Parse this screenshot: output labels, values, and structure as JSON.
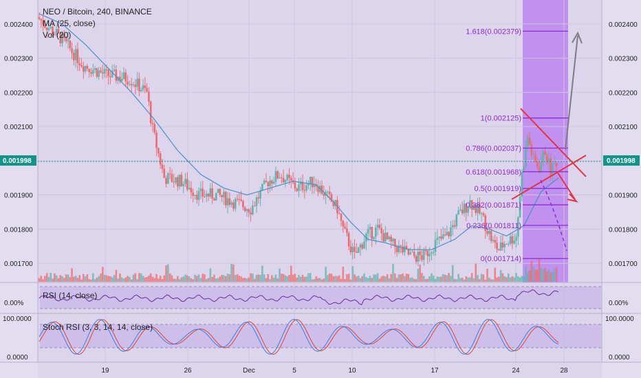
{
  "header": {
    "title": "NEO / Bitcoin, 240, BINANCE",
    "ma_label": "MA (25, close)",
    "vol_label": "Vol (20)"
  },
  "price_axis": {
    "labels": [
      "0.002400",
      "0.002300",
      "0.002200",
      "0.002100",
      "0.001900",
      "0.001800",
      "0.001700"
    ],
    "current_price": "0.001998"
  },
  "rsi": {
    "label": "RSI (14, close)",
    "axis_label": "0.00%"
  },
  "stoch": {
    "label": "Stoch RSI (3, 3, 14, 14, close)",
    "axis_top": "100.0000",
    "axis_bottom": "0.0000"
  },
  "x_axis": {
    "labels": [
      "19",
      "26",
      "Dec",
      "5",
      "10",
      "17",
      "24",
      "28"
    ]
  },
  "fib_levels": [
    {
      "label": "1.618(0.002379)",
      "value": 0.002379
    },
    {
      "label": "1(0.002125)",
      "value": 0.002125
    },
    {
      "label": "0.786(0.002037)",
      "value": 0.002037
    },
    {
      "label": "0.618(0.001968)",
      "value": 0.001968
    },
    {
      "label": "0.5(0.001919)",
      "value": 0.001919
    },
    {
      "label": "0.382(0.001871)",
      "value": 0.001871
    },
    {
      "label": "0.236(0.001811)",
      "value": 0.001811
    },
    {
      "label": "0(0.001714)",
      "value": 0.001714
    }
  ],
  "colors": {
    "up": "#5fb4ad",
    "down": "#ef6a6e",
    "ma": "#4d8fc1",
    "fib": "#8e2bd6",
    "fib_band": "#b57aef",
    "triangle": "#e53345",
    "arrow_up": "#7c7c84",
    "rsi_line": "#6a2ba0",
    "stoch_k": "#3a7ee0",
    "stoch_d": "#e0442f",
    "price_tag": "#12948b"
  },
  "chart_data": {
    "type": "candlestick",
    "title": "NEO / Bitcoin, 240, BINANCE",
    "ylim": [
      0.00165,
      0.00244
    ],
    "current_price": 0.001998,
    "x_ticks": [
      "19",
      "26",
      "Dec",
      "5",
      "10",
      "17",
      "24",
      "28"
    ],
    "close_path": [
      [
        0,
        0.00242
      ],
      [
        4,
        0.00236
      ],
      [
        8,
        0.00228
      ],
      [
        12,
        0.00225
      ],
      [
        16,
        0.00224
      ],
      [
        19,
        0.0022
      ],
      [
        20,
        0.00209
      ],
      [
        22,
        0.00195
      ],
      [
        25,
        0.00194
      ],
      [
        28,
        0.0019
      ],
      [
        31,
        0.0019
      ],
      [
        34,
        0.00188
      ],
      [
        37,
        0.00186
      ],
      [
        40,
        0.00194
      ],
      [
        42,
        0.00196
      ],
      [
        45,
        0.00192
      ],
      [
        48,
        0.00194
      ],
      [
        50,
        0.0019
      ],
      [
        52,
        0.00186
      ],
      [
        53,
        0.0018
      ],
      [
        55,
        0.00172
      ],
      [
        57,
        0.00178
      ],
      [
        59,
        0.0018
      ],
      [
        61,
        0.00176
      ],
      [
        63,
        0.00174
      ],
      [
        65,
        0.00172
      ],
      [
        67,
        0.00172
      ],
      [
        69,
        0.00176
      ],
      [
        71,
        0.00178
      ],
      [
        73,
        0.00184
      ],
      [
        75,
        0.00188
      ],
      [
        77,
        0.00184
      ],
      [
        79,
        0.00176
      ],
      [
        80,
        0.00174
      ],
      [
        81,
        0.00176
      ],
      [
        83,
        0.00178
      ],
      [
        84,
        0.00196
      ],
      [
        85,
        0.00207
      ],
      [
        86,
        0.002
      ],
      [
        87,
        0.00198
      ],
      [
        88,
        0.00203
      ],
      [
        89,
        0.00197
      ],
      [
        90,
        0.001998
      ]
    ],
    "ma_path": [
      [
        0,
        0.00243
      ],
      [
        4,
        0.0024
      ],
      [
        8,
        0.00234
      ],
      [
        12,
        0.00227
      ],
      [
        16,
        0.0022
      ],
      [
        20,
        0.00212
      ],
      [
        24,
        0.00203
      ],
      [
        28,
        0.00196
      ],
      [
        32,
        0.00192
      ],
      [
        36,
        0.0019
      ],
      [
        40,
        0.00192
      ],
      [
        44,
        0.00194
      ],
      [
        48,
        0.00193
      ],
      [
        51,
        0.00188
      ],
      [
        54,
        0.00182
      ],
      [
        57,
        0.00177
      ],
      [
        60,
        0.00176
      ],
      [
        64,
        0.00174
      ],
      [
        68,
        0.00174
      ],
      [
        72,
        0.00177
      ],
      [
        75,
        0.00181
      ],
      [
        78,
        0.0018
      ],
      [
        81,
        0.00178
      ],
      [
        84,
        0.00181
      ],
      [
        87,
        0.00191
      ],
      [
        90,
        0.00195
      ]
    ],
    "fib_levels": [
      0.002379,
      0.002125,
      0.002037,
      0.001968,
      0.001919,
      0.001871,
      0.001811,
      0.001714
    ]
  }
}
